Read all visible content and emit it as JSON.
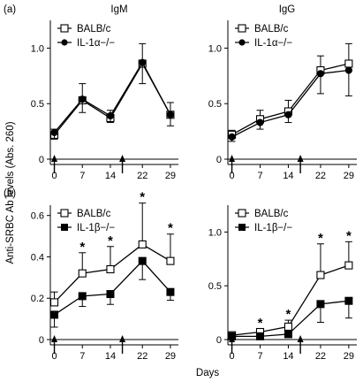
{
  "figure": {
    "ylabel": "Anti-SRBC Ab levels (Abs. 260)",
    "xlabel": "Days"
  },
  "chart_data": [
    {
      "type": "line",
      "panel": "(a)",
      "title": "IgM",
      "x": [
        0,
        7,
        14,
        22,
        29
      ],
      "xticks": [
        "0",
        "7",
        "14",
        "22",
        "29"
      ],
      "ylim": [
        0,
        1.25
      ],
      "yticks": [
        0,
        0.5,
        1.0
      ],
      "ytick_labels": [
        "0",
        "0.5",
        "1.0"
      ],
      "immunization_days": [
        0,
        17
      ],
      "legend_position": "top-left",
      "series": [
        {
          "name": "BALB/c",
          "marker": "open-square",
          "values": [
            0.22,
            0.53,
            0.37,
            0.86,
            0.4
          ],
          "err": [
            0.05,
            0.15,
            0.07,
            0.18,
            0.11
          ]
        },
        {
          "name": "IL-1α−/−",
          "marker": "filled-circle",
          "values": [
            0.24,
            0.54,
            0.39,
            0.87,
            0.4
          ],
          "err": [
            0.06,
            0.12,
            0.06,
            0.19,
            0.1
          ]
        }
      ],
      "significance": []
    },
    {
      "type": "line",
      "panel": "",
      "title": "IgG",
      "x": [
        0,
        7,
        14,
        22,
        29
      ],
      "xticks": [
        "0",
        "7",
        "14",
        "22",
        "29"
      ],
      "ylim": [
        0,
        1.25
      ],
      "yticks": [
        0,
        0.5,
        1.0
      ],
      "ytick_labels": [
        "0",
        "0.5",
        "1.0"
      ],
      "immunization_days": [
        0,
        17
      ],
      "legend_position": "top-left",
      "series": [
        {
          "name": "BALB/c",
          "marker": "open-square",
          "values": [
            0.22,
            0.36,
            0.43,
            0.8,
            0.86
          ],
          "err": [
            0.04,
            0.08,
            0.1,
            0.13,
            0.18
          ]
        },
        {
          "name": "IL-1α−/−",
          "marker": "filled-circle",
          "values": [
            0.2,
            0.33,
            0.4,
            0.77,
            0.8
          ],
          "err": [
            0.04,
            0.06,
            0.07,
            0.18,
            0.23
          ]
        }
      ],
      "significance": []
    },
    {
      "type": "line",
      "panel": "(b)",
      "title": "",
      "x": [
        0,
        7,
        14,
        22,
        29
      ],
      "xticks": [
        "0",
        "7",
        "14",
        "22",
        "29"
      ],
      "ylim": [
        0,
        0.65
      ],
      "yticks": [
        0,
        0.2,
        0.4,
        0.6
      ],
      "ytick_labels": [
        "0",
        "0.2",
        "0.4",
        "0.6"
      ],
      "immunization_days": [
        0,
        17
      ],
      "legend_position": "top-left",
      "series": [
        {
          "name": "BALB/c",
          "marker": "open-square",
          "values": [
            0.18,
            0.32,
            0.34,
            0.46,
            0.38
          ],
          "err": [
            0.05,
            0.1,
            0.11,
            0.2,
            0.13
          ]
        },
        {
          "name": "IL-1β−/−",
          "marker": "filled-square",
          "values": [
            0.12,
            0.21,
            0.22,
            0.38,
            0.23
          ],
          "err": [
            0.06,
            0.05,
            0.05,
            0.09,
            0.04
          ]
        }
      ],
      "significance": [
        7,
        14,
        22,
        29
      ]
    },
    {
      "type": "line",
      "panel": "",
      "title": "",
      "x": [
        0,
        7,
        14,
        22,
        29
      ],
      "xticks": [
        "0",
        "7",
        "14",
        "22",
        "29"
      ],
      "ylim": [
        0,
        1.25
      ],
      "yticks": [
        0,
        0.5,
        1.0
      ],
      "ytick_labels": [
        "0",
        "0.5",
        "1.0"
      ],
      "immunization_days": [
        0,
        17
      ],
      "legend_position": "top-left",
      "series": [
        {
          "name": "BALB/c",
          "marker": "open-square",
          "values": [
            0.04,
            0.07,
            0.12,
            0.6,
            0.69
          ],
          "err": [
            0.02,
            0.03,
            0.06,
            0.29,
            0.22
          ]
        },
        {
          "name": "IL-1β−/−",
          "marker": "filled-square",
          "values": [
            0.03,
            0.03,
            0.05,
            0.33,
            0.36
          ],
          "err": [
            0.02,
            0.02,
            0.03,
            0.17,
            0.16
          ]
        }
      ],
      "significance": [
        7,
        14,
        22,
        29
      ]
    }
  ]
}
